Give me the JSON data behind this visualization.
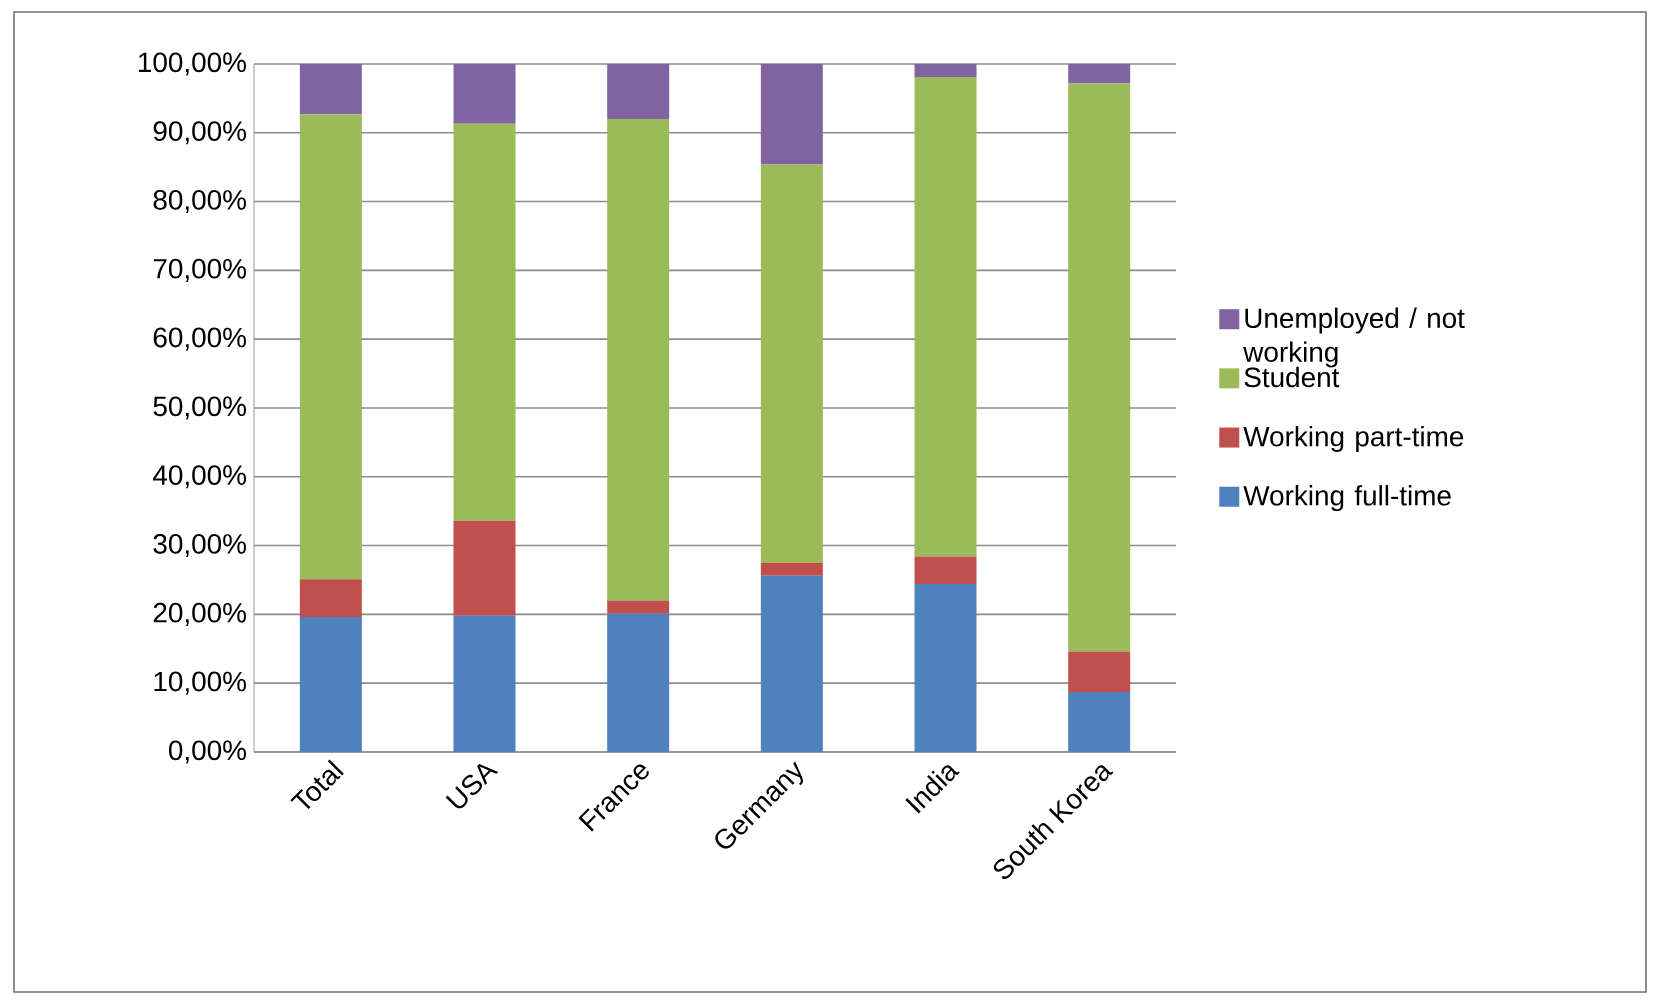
{
  "chart_data": {
    "type": "bar",
    "stacked": true,
    "categories": [
      "Total",
      "USA",
      "France",
      "Germany",
      "India",
      "South Korea"
    ],
    "series": [
      {
        "name": "Working full-time",
        "color": "#4f81bd",
        "values": [
          19.6,
          19.8,
          20.1,
          25.6,
          24.4,
          8.7
        ]
      },
      {
        "name": "Working part-time",
        "color": "#c0504d",
        "values": [
          5.5,
          13.8,
          1.9,
          1.9,
          4.0,
          5.9
        ]
      },
      {
        "name": "Student",
        "color": "#9bbb59",
        "values": [
          67.6,
          57.7,
          70.0,
          57.9,
          69.7,
          82.6
        ]
      },
      {
        "name": "Unemployed / not working",
        "color": "#8064a2",
        "values": [
          7.3,
          8.7,
          8.0,
          14.6,
          1.9,
          2.8
        ]
      }
    ],
    "ylim": [
      0,
      100
    ],
    "yticks": [
      {
        "value": 0,
        "label": "0,00%"
      },
      {
        "value": 10,
        "label": "10,00%"
      },
      {
        "value": 20,
        "label": "20,00%"
      },
      {
        "value": 30,
        "label": "30,00%"
      },
      {
        "value": 40,
        "label": "40,00%"
      },
      {
        "value": 50,
        "label": "50,00%"
      },
      {
        "value": 60,
        "label": "60,00%"
      },
      {
        "value": 70,
        "label": "70,00%"
      },
      {
        "value": 80,
        "label": "80,00%"
      },
      {
        "value": 90,
        "label": "90,00%"
      },
      {
        "value": 100,
        "label": "100,00%"
      }
    ],
    "grid": "y",
    "legend": "right"
  }
}
